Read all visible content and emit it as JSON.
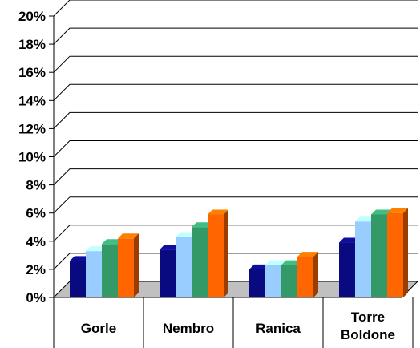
{
  "chart_data": {
    "type": "bar",
    "style": "3d-clustered-column",
    "categories": [
      "Gorle",
      "Nembro",
      "Ranica",
      "Torre Boldone"
    ],
    "series": [
      {
        "values": [
          2.6,
          3.4,
          2.0,
          3.9
        ],
        "color": "#0a0a80"
      },
      {
        "values": [
          3.3,
          4.3,
          2.3,
          5.4
        ],
        "color": "#99ccff"
      },
      {
        "values": [
          3.8,
          5.0,
          2.3,
          5.9
        ],
        "color": "#339966"
      },
      {
        "values": [
          4.2,
          5.9,
          2.9,
          6.0
        ],
        "color": "#ff6600"
      }
    ],
    "yticks": [
      "0%",
      "2%",
      "4%",
      "6%",
      "8%",
      "10%",
      "12%",
      "14%",
      "16%",
      "18%",
      "20%"
    ],
    "ylim": [
      0,
      20
    ],
    "y_unit": "%",
    "grid": true,
    "legend": "none"
  }
}
